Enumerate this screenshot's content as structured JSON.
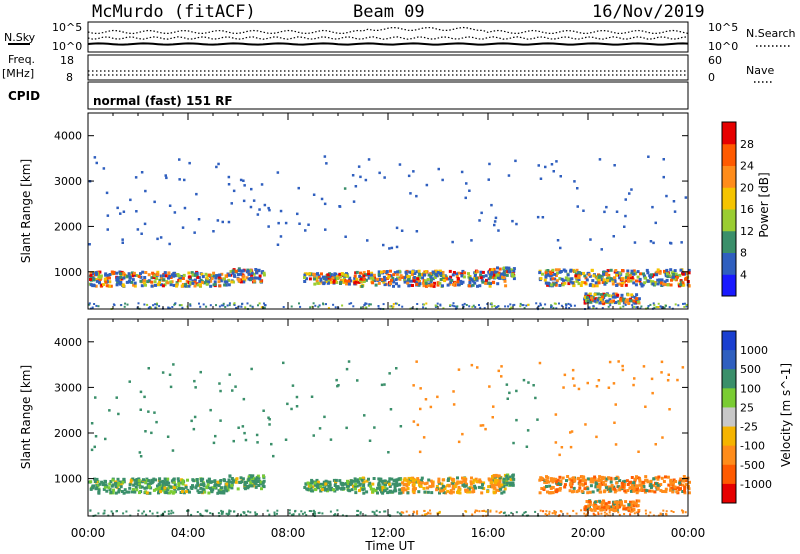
{
  "header": {
    "station": "McMurdo (fitACF)",
    "beam": "Beam 09",
    "date": "16/Nov/2019"
  },
  "status_panels": {
    "nsky_label": "N.Sky",
    "nsky_ticks": [
      "10^5",
      "10^0"
    ],
    "nsearch_label": "N.Search",
    "nsearch_ticks": [
      "10^5",
      "10^0"
    ],
    "freq_label": "Freq.",
    "freq_unit": "[MHz]",
    "freq_ticks": [
      "18",
      "8"
    ],
    "nave_label": "Nave",
    "nave_ticks": [
      "60",
      "0"
    ],
    "cpid_label": "CPID",
    "cpid_text": "normal (fast) 151 RF"
  },
  "colors": {
    "frame": "#000000",
    "power_scale": [
      "#1a1aff",
      "#2f5fbf",
      "#3a8f6a",
      "#9acd32",
      "#f5c400",
      "#ff8c1a",
      "#ff5a00",
      "#e60000"
    ],
    "velocity_scale": [
      "#e60000",
      "#ff5a00",
      "#ff8c1a",
      "#f5b400",
      "#c8c8c8",
      "#7acc33",
      "#3a8f6a",
      "#2f5fbf",
      "#1a3fd0"
    ]
  },
  "chart_data": [
    {
      "type": "heatmap",
      "name": "Power",
      "xlabel": "Time UT",
      "ylabel": "Slant Range [km]",
      "x_ticks": [
        "00:00",
        "04:00",
        "08:00",
        "12:00",
        "16:00",
        "20:00",
        "00:00"
      ],
      "y_ticks": [
        "1000",
        "2000",
        "3000",
        "4000"
      ],
      "xlim_hours": [
        0,
        24
      ],
      "ylim_km": [
        180,
        4500
      ],
      "colorbar_label": "Power [dB]",
      "colorbar_ticks": [
        "4",
        "8",
        "12",
        "16",
        "20",
        "24",
        "28"
      ],
      "colorbar_range": [
        0,
        30
      ]
    },
    {
      "type": "heatmap",
      "name": "Velocity",
      "xlabel": "Time UT",
      "ylabel": "Slant Range [km]",
      "x_ticks": [
        "00:00",
        "04:00",
        "08:00",
        "12:00",
        "16:00",
        "20:00",
        "00:00"
      ],
      "y_ticks": [
        "1000",
        "2000",
        "3000",
        "4000"
      ],
      "xlim_hours": [
        0,
        24
      ],
      "ylim_km": [
        180,
        4500
      ],
      "colorbar_label": "Velocity [m s^-1]",
      "colorbar_ticks": [
        "1000",
        "500",
        "100",
        "25",
        "-25",
        "-100",
        "-500",
        "-1000"
      ]
    }
  ]
}
